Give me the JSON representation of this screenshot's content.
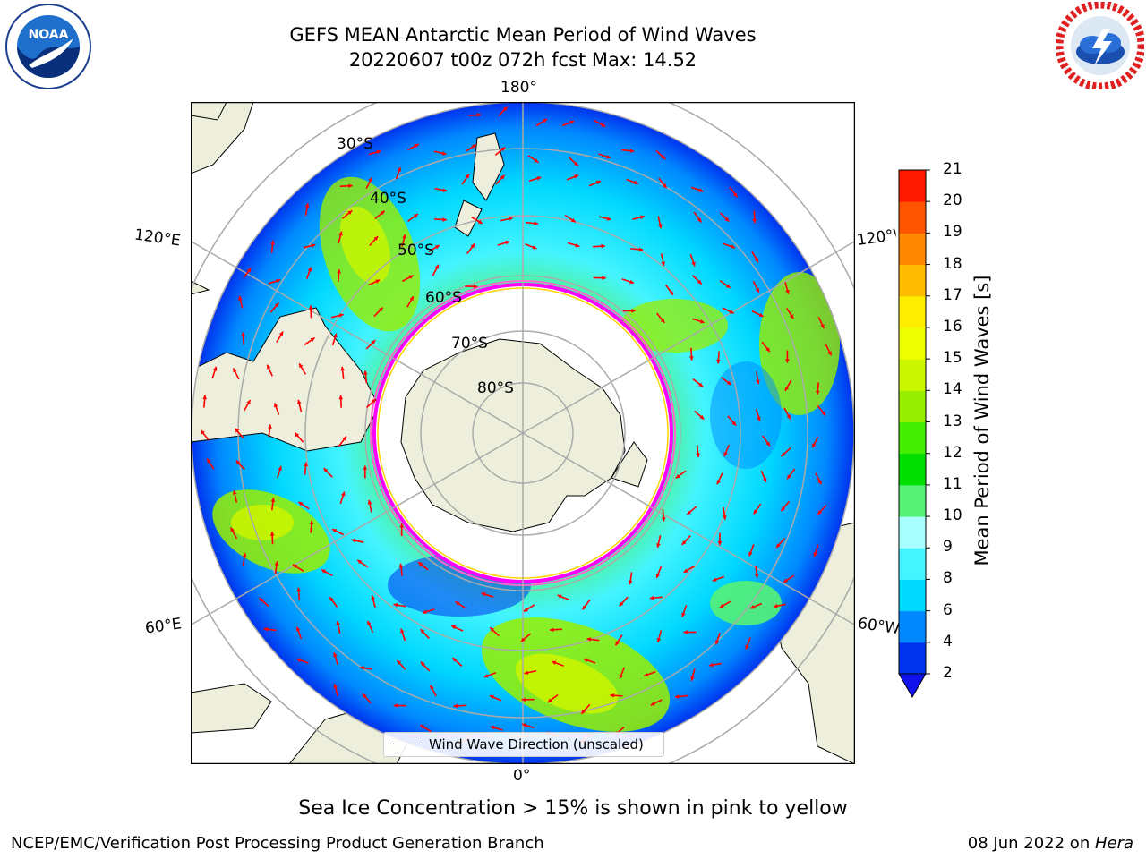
{
  "title": {
    "line1": "GEFS MEAN Antarctic Mean Period of Wind Waves",
    "line2": "20220607 t00z 072h fcst   Max: 14.52"
  },
  "logos": {
    "left": {
      "name": "noaa-logo",
      "text": "NOAA",
      "ring_text": "NATIONAL OCEANIC AND ATMOSPHERIC ADMINISTRATION  U.S. DEPARTMENT OF COMMERCE"
    },
    "right": {
      "name": "nws-logo",
      "ring_text": "NATIONAL WEATHER SERVICE"
    }
  },
  "map": {
    "projection": "south-polar-stereographic",
    "longitude_labels": {
      "top": "180°",
      "bottom": "0°",
      "left_upper": "120°E",
      "left_lower": "60°E",
      "right_upper": "120°W",
      "right_lower": "60°W"
    },
    "latitude_labels": [
      "30°S",
      "40°S",
      "50°S",
      "60°S",
      "70°S",
      "80°S"
    ],
    "legend_label": "Wind Wave Direction (unscaled)",
    "arrow_color": "#ff0000",
    "ice_edge_colors": [
      "#ff00ff",
      "#ff66cc",
      "#ffd400"
    ],
    "land_color": "#eeeedc"
  },
  "colorbar": {
    "label": "Mean Period of Wind Waves [s]",
    "ticks": [
      "2",
      "4",
      "6",
      "8",
      "9",
      "10",
      "11",
      "12",
      "13",
      "14",
      "15",
      "16",
      "17",
      "18",
      "19",
      "20",
      "21"
    ],
    "colors": [
      "#0033ee",
      "#0088ff",
      "#00d8ff",
      "#44f4ff",
      "#a8ffff",
      "#55f277",
      "#00dd00",
      "#44ee00",
      "#99ee00",
      "#ccf500",
      "#eeff00",
      "#ffee00",
      "#ffbb00",
      "#ff8800",
      "#ff5500",
      "#ff1a00"
    ],
    "under_color": "#1111ee"
  },
  "caption": "Sea Ice Concentration > 15% is shown in pink to yellow",
  "footer": {
    "left": "NCEP/EMC/Verification Post Processing Product Generation Branch",
    "right_date": "08 Jun 2022 on ",
    "right_system": "Hera"
  }
}
